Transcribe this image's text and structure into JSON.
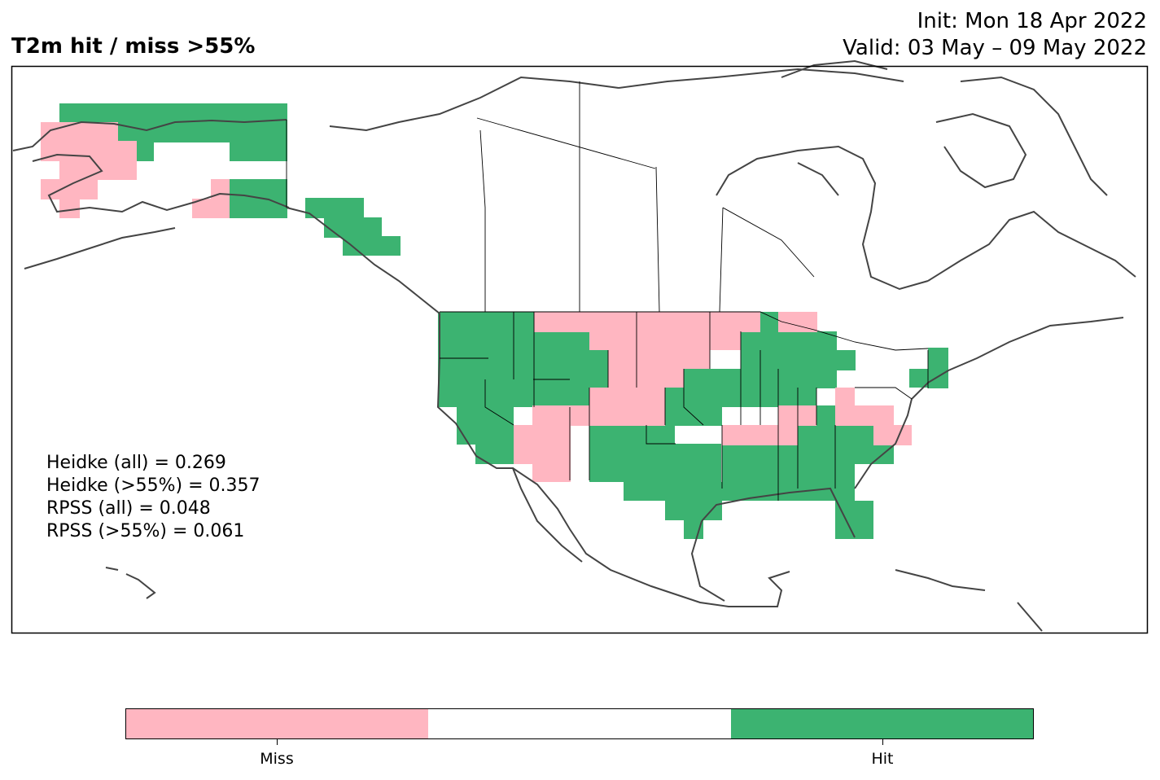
{
  "header": {
    "title": "T2m hit / miss  >55%",
    "init": "Init: Mon 18 Apr 2022",
    "valid": "Valid: 03 May – 09 May 2022"
  },
  "stats": [
    "Heidke (all) = 0.269",
    "Heidke (>55%) = 0.357",
    "RPSS (all) = 0.048",
    "RPSS (>55%) = 0.061"
  ],
  "legend": {
    "classes": [
      {
        "label": "Miss",
        "color": "#ffb6c1"
      },
      {
        "label": "",
        "color": "#ffffff"
      },
      {
        "label": "Hit",
        "color": "#3cb371"
      }
    ]
  },
  "colors": {
    "hit": "#3cb371",
    "miss": "#ffb6c1",
    "coast": "#444444",
    "border": "#000000"
  }
}
